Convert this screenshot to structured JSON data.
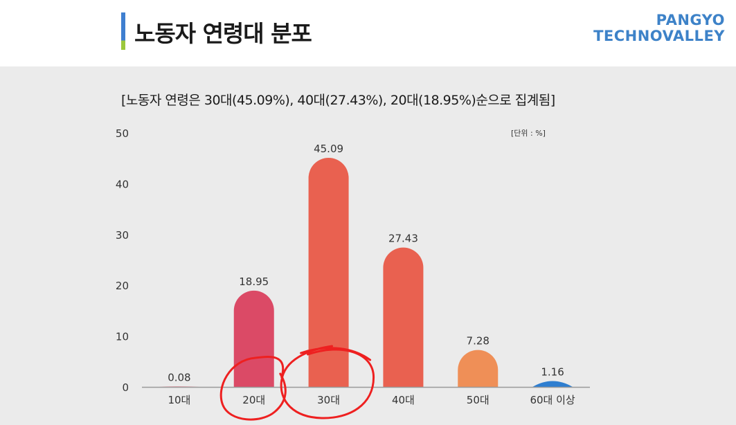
{
  "header": {
    "title": "노동자 연령대 분포",
    "logo_line1": "PANGYO",
    "logo_line2": "TECHNOVALLEY"
  },
  "colors": {
    "accent_blue": "#3d82c8",
    "accent_green": "#9cc83c",
    "bar_pink": "#db4a66",
    "bar_red": "#e96150",
    "bar_orange": "#ef8f57",
    "bar_blue": "#2e7ed0",
    "annotation_red": "#ee2020"
  },
  "chart_data": {
    "type": "bar",
    "title": "[노동자 연령은 30대(45.09%), 40대(27.43%), 20대(18.95%)순으로 집계됨]",
    "unit_label": "[단위 : %]",
    "categories": [
      "10대",
      "20대",
      "30대",
      "40대",
      "50대",
      "60대 이상"
    ],
    "values": [
      0.08,
      18.95,
      45.09,
      27.43,
      7.28,
      1.16
    ],
    "value_labels": [
      "0.08",
      "18.95",
      "45.09",
      "27.43",
      "7.28",
      "1.16"
    ],
    "bar_colors": [
      "#e0556a",
      "#db4a66",
      "#e96150",
      "#e96150",
      "#ef8f57",
      "#2e7ed0"
    ],
    "ylim": [
      0,
      50
    ],
    "yticks": [
      0,
      10,
      20,
      30,
      40,
      50
    ],
    "xlabel": "",
    "ylabel": "",
    "grid": false,
    "annotations": [
      "circled 20대",
      "circled 30대"
    ]
  }
}
